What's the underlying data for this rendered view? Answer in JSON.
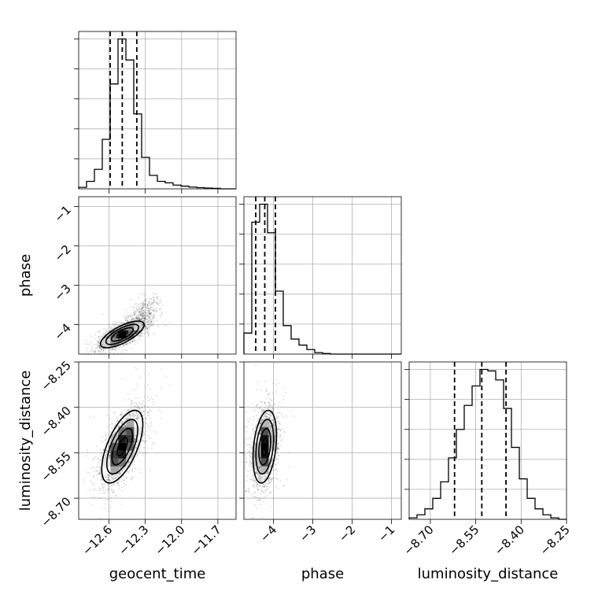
{
  "chart_data": {
    "type": "corner",
    "parameters": [
      "geocent_time",
      "phase",
      "luminosity_distance"
    ],
    "grid": true,
    "quantile_style": "dashed",
    "diagonal": [
      {
        "type": "histogram",
        "parameter": "geocent_time",
        "xlim": [
          -12.85,
          -11.55
        ],
        "ymax": 1.0,
        "bin_edges": [
          -12.85,
          -12.785,
          -12.72,
          -12.655,
          -12.59,
          -12.525,
          -12.46,
          -12.395,
          -12.33,
          -12.265,
          -12.2,
          -12.135,
          -12.07,
          -12.005,
          -11.94,
          -11.875,
          -11.81,
          -11.745,
          -11.68,
          -11.615,
          -11.55
        ],
        "counts": [
          0.01,
          0.05,
          0.13,
          0.33,
          0.7,
          1.0,
          0.86,
          0.5,
          0.21,
          0.09,
          0.05,
          0.04,
          0.025,
          0.018,
          0.012,
          0.008,
          0.005,
          0.003,
          0.0,
          0.0
        ],
        "quantiles": [
          -12.59,
          -12.49,
          -12.37
        ]
      },
      {
        "type": "histogram",
        "parameter": "phase",
        "xlim": [
          -4.75,
          -0.75
        ],
        "ymax": 1.0,
        "bin_edges": [
          -4.75,
          -4.55,
          -4.35,
          -4.15,
          -3.95,
          -3.75,
          -3.55,
          -3.35,
          -3.15,
          -2.95,
          -2.75,
          -2.55,
          -2.35,
          -2.15,
          -1.95,
          -1.75,
          -1.55,
          -1.35,
          -1.15,
          -0.95,
          -0.75
        ],
        "counts": [
          0.14,
          0.88,
          1.0,
          0.81,
          0.42,
          0.19,
          0.1,
          0.06,
          0.03,
          0.01,
          0.004,
          0.0,
          0.0,
          0.0,
          0.0,
          0.0,
          0.0,
          0.0,
          0.0,
          0.0
        ],
        "quantiles": [
          -4.45,
          -4.22,
          -3.95
        ]
      },
      {
        "type": "histogram",
        "parameter": "luminosity_distance",
        "xlim": [
          -8.77,
          -8.25
        ],
        "ymax": 1.0,
        "bin_edges": [
          -8.77,
          -8.744,
          -8.718,
          -8.692,
          -8.666,
          -8.64,
          -8.614,
          -8.588,
          -8.562,
          -8.536,
          -8.51,
          -8.484,
          -8.458,
          -8.432,
          -8.406,
          -8.38,
          -8.354,
          -8.328,
          -8.302,
          -8.276,
          -8.25
        ],
        "counts": [
          0.01,
          0.03,
          0.07,
          0.14,
          0.25,
          0.41,
          0.6,
          0.76,
          0.89,
          1.0,
          0.99,
          0.93,
          0.74,
          0.48,
          0.27,
          0.14,
          0.07,
          0.03,
          0.01,
          0.0
        ],
        "quantiles": [
          -8.62,
          -8.53,
          -8.45
        ]
      }
    ],
    "panels": [
      {
        "type": "scatter_contour",
        "x_param": "geocent_time",
        "y_param": "phase",
        "xlim": [
          -12.85,
          -11.55
        ],
        "ylim": [
          -4.75,
          -0.75
        ],
        "mean": [
          -12.49,
          -4.25
        ],
        "std": [
          0.09,
          0.17
        ],
        "corr": 0.72,
        "tail": {
          "direction": [
            0.6,
            1.9
          ],
          "length": 1.0
        },
        "contour_levels": [
          0.5,
          1.0,
          1.5,
          2.0
        ]
      },
      {
        "type": "scatter_contour",
        "x_param": "geocent_time",
        "y_param": "luminosity_distance",
        "xlim": [
          -12.85,
          -11.55
        ],
        "ylim": [
          -8.77,
          -8.25
        ],
        "mean": [
          -12.49,
          -8.53
        ],
        "std": [
          0.085,
          0.06
        ],
        "corr": 0.62,
        "contour_levels": [
          0.5,
          1.0,
          1.5,
          2.0
        ]
      },
      {
        "type": "scatter_contour",
        "x_param": "phase",
        "y_param": "luminosity_distance",
        "xlim": [
          -4.75,
          -0.75
        ],
        "ylim": [
          -8.77,
          -8.25
        ],
        "mean": [
          -4.22,
          -8.53
        ],
        "std": [
          0.15,
          0.06
        ],
        "corr": 0.3,
        "contour_levels": [
          0.5,
          1.0,
          1.5,
          2.0
        ]
      }
    ],
    "ticks": {
      "geocent_time": {
        "values": [
          -12.6,
          -12.3,
          -12.0,
          -11.7
        ],
        "labels": [
          "−12.6",
          "−12.3",
          "−12.0",
          "−11.7"
        ]
      },
      "phase": {
        "values": [
          -4,
          -3,
          -2,
          -1
        ],
        "labels": [
          "−4",
          "−3",
          "−2",
          "−1"
        ]
      },
      "luminosity_distance": {
        "values": [
          -8.7,
          -8.55,
          -8.4,
          -8.25
        ],
        "labels": [
          "−8.70",
          "−8.55",
          "−8.40",
          "−8.25"
        ]
      }
    },
    "axis_labels": {
      "x": [
        "geocent_time",
        "phase",
        "luminosity_distance"
      ],
      "y": [
        "phase",
        "luminosity_distance"
      ]
    }
  }
}
